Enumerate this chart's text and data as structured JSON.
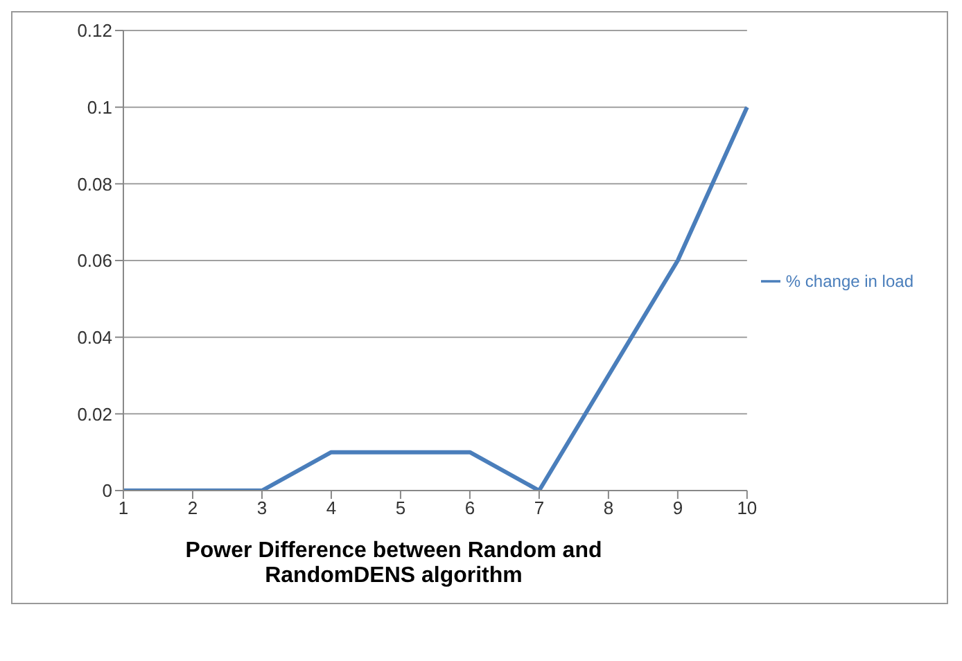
{
  "chart_data": {
    "type": "line",
    "xlabel": "Power Difference between Random and RandomDENS algorithm",
    "categories": [
      "1",
      "2",
      "3",
      "4",
      "5",
      "6",
      "7",
      "8",
      "9",
      "10"
    ],
    "series": [
      {
        "name": "% change in load",
        "color": "#4a7ebb",
        "values": [
          0,
          0,
          0,
          0.01,
          0.01,
          0.01,
          0,
          0.03,
          0.06,
          0.1
        ]
      }
    ],
    "ylim": [
      0,
      0.12
    ],
    "yticks": [
      0,
      0.02,
      0.04,
      0.06,
      0.08,
      0.1,
      0.12
    ],
    "grid": "y",
    "legend": "right",
    "marker": "none",
    "line_style": "solid"
  }
}
